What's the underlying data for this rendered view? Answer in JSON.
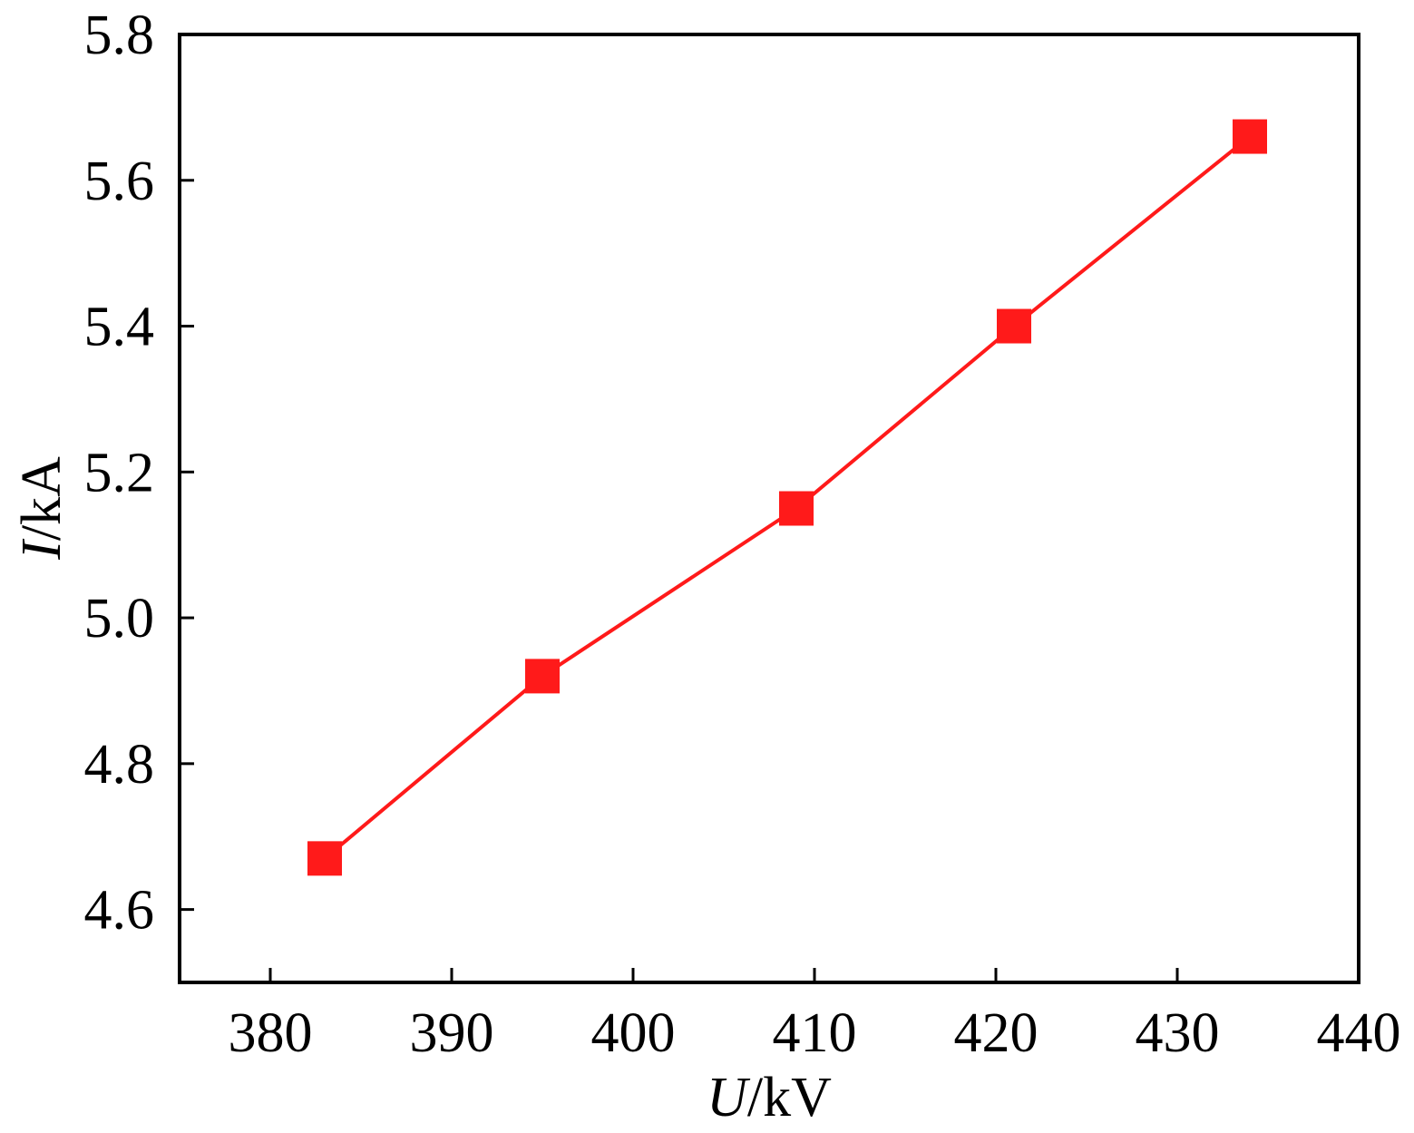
{
  "chart_data": {
    "type": "line",
    "title": "",
    "xlabel": {
      "symbol": "U",
      "unit": "/kV"
    },
    "ylabel": {
      "symbol": "I",
      "unit": "/kA"
    },
    "xlim": [
      375,
      440
    ],
    "ylim": [
      4.5,
      5.8
    ],
    "x_ticks": [
      380,
      390,
      400,
      410,
      420,
      430,
      440
    ],
    "x_tick_labels": [
      "380",
      "390",
      "400",
      "410",
      "420",
      "430",
      "440"
    ],
    "y_ticks": [
      4.6,
      4.8,
      5.0,
      5.2,
      5.4,
      5.6,
      5.8
    ],
    "y_tick_labels": [
      "4.6",
      "4.8",
      "5.0",
      "5.2",
      "5.4",
      "5.6",
      "5.8"
    ],
    "grid": false,
    "legend": "none",
    "series": [
      {
        "color": "#ff1a1a",
        "marker": "square",
        "x": [
          383,
          395,
          409,
          421,
          434
        ],
        "y": [
          4.67,
          4.92,
          5.15,
          5.4,
          5.66
        ]
      }
    ]
  }
}
